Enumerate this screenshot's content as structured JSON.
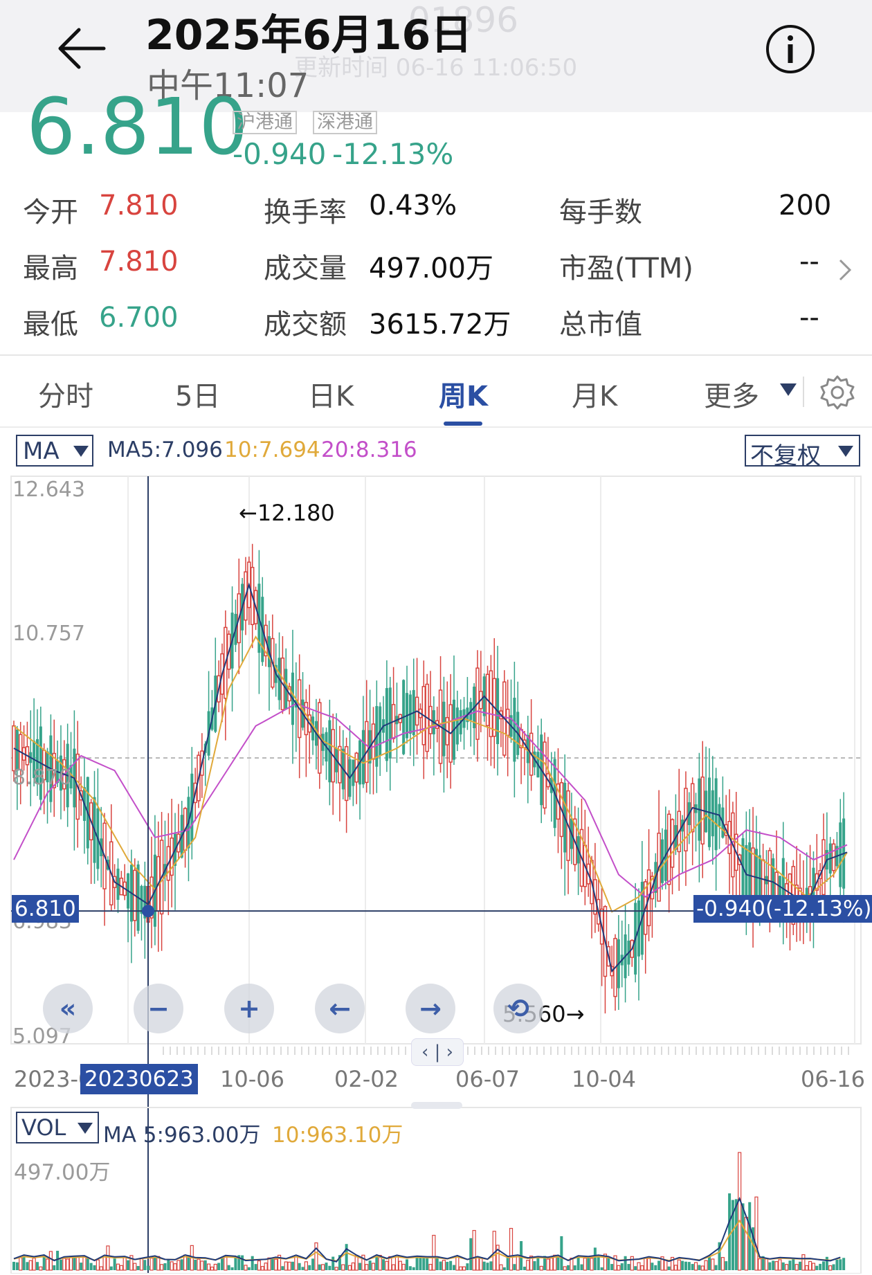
{
  "header": {
    "back_icon": "back-arrow-icon",
    "date": "2025年6月16日",
    "time": "中午11:07",
    "ghost_code": "01896",
    "ghost_update": "更新时间 06-16 11:06:50",
    "info_icon": "info-icon"
  },
  "quote": {
    "price": "6.810",
    "change": "-0.940",
    "change_pct": "-12.13%",
    "badge1": "沪港通",
    "badge2": "深港通",
    "price_color": "#36a38a"
  },
  "stats": {
    "open_label": "今开",
    "open_value": "7.810",
    "high_label": "最高",
    "high_value": "7.810",
    "low_label": "最低",
    "low_value": "6.700",
    "turnover_label": "换手率",
    "turnover_value": "0.43%",
    "volume_label": "成交量",
    "volume_value": "497.00万",
    "amount_label": "成交额",
    "amount_value": "3615.72万",
    "lot_label": "每手数",
    "lot_value": "200",
    "pe_label": "市盈(TTM)",
    "pe_value": "--",
    "mktcap_label": "总市值",
    "mktcap_value": "--"
  },
  "tabs": {
    "t1": "分时",
    "t2": "5日",
    "t3": "日K",
    "t4": "周K",
    "t5": "月K",
    "t6": "更多",
    "active": "周K",
    "settings_icon": "gear-icon"
  },
  "chart_toolbar": {
    "ma_select": "MA",
    "ma5": "MA5:7.096",
    "ma10": "10:7.694",
    "ma20": "20:8.316",
    "adjust_select": "不复权"
  },
  "chart_data": {
    "type": "candlestick",
    "period": "weekly",
    "ylim": [
      5.097,
      12.643
    ],
    "y_ticks": [
      "12.643",
      "10.757",
      "8.870",
      "6.983",
      "5.097"
    ],
    "x_ticks": [
      "2023-0",
      "10-06",
      "02-02",
      "06-07",
      "10-04",
      "06-16"
    ],
    "max_label": "←12.180",
    "min_label": "5.560→",
    "current_price_tag": "6.810",
    "change_tag": "-0.940(-12.13%)",
    "crosshair_date": "20230623",
    "reference_line": 8.87,
    "colors": {
      "up": "#d8443f",
      "down": "#36a38a",
      "ma5": "#1f3a7a",
      "ma10": "#e0a93a",
      "ma20": "#c34fc9"
    },
    "ma_anchors_ma5": [
      [
        0,
        9.0
      ],
      [
        12,
        8.7
      ],
      [
        18,
        8.6
      ],
      [
        30,
        7.2
      ],
      [
        40,
        6.9
      ],
      [
        52,
        8.0
      ],
      [
        62,
        10.0
      ],
      [
        70,
        11.2
      ],
      [
        78,
        10.0
      ],
      [
        90,
        9.2
      ],
      [
        100,
        8.6
      ],
      [
        110,
        9.3
      ],
      [
        120,
        9.5
      ],
      [
        130,
        9.2
      ],
      [
        140,
        9.7
      ],
      [
        150,
        9.2
      ],
      [
        160,
        8.5
      ],
      [
        172,
        7.2
      ],
      [
        178,
        6.0
      ],
      [
        184,
        6.3
      ],
      [
        192,
        7.4
      ],
      [
        202,
        8.2
      ],
      [
        210,
        8.1
      ],
      [
        218,
        7.3
      ],
      [
        226,
        7.2
      ],
      [
        236,
        6.9
      ],
      [
        242,
        7.5
      ],
      [
        248,
        7.6
      ]
    ],
    "ma_anchors_ma10": [
      [
        0,
        9.3
      ],
      [
        14,
        8.8
      ],
      [
        24,
        8.3
      ],
      [
        34,
        7.5
      ],
      [
        42,
        7.1
      ],
      [
        54,
        7.8
      ],
      [
        64,
        9.8
      ],
      [
        72,
        10.5
      ],
      [
        82,
        9.8
      ],
      [
        92,
        9.1
      ],
      [
        104,
        8.8
      ],
      [
        114,
        9.0
      ],
      [
        124,
        9.3
      ],
      [
        134,
        9.4
      ],
      [
        146,
        9.2
      ],
      [
        158,
        8.8
      ],
      [
        170,
        7.7
      ],
      [
        178,
        6.8
      ],
      [
        186,
        7.0
      ],
      [
        196,
        7.6
      ],
      [
        206,
        8.1
      ],
      [
        216,
        7.7
      ],
      [
        226,
        7.4
      ],
      [
        236,
        7.0
      ],
      [
        244,
        7.3
      ],
      [
        248,
        7.6
      ]
    ],
    "ma_anchors_ma20": [
      [
        0,
        7.5
      ],
      [
        10,
        8.4
      ],
      [
        20,
        8.9
      ],
      [
        30,
        8.7
      ],
      [
        42,
        7.8
      ],
      [
        52,
        7.9
      ],
      [
        62,
        8.6
      ],
      [
        72,
        9.3
      ],
      [
        84,
        9.6
      ],
      [
        96,
        9.4
      ],
      [
        106,
        9.0
      ],
      [
        116,
        9.2
      ],
      [
        126,
        9.3
      ],
      [
        138,
        9.5
      ],
      [
        148,
        9.4
      ],
      [
        160,
        8.8
      ],
      [
        170,
        8.3
      ],
      [
        180,
        7.3
      ],
      [
        188,
        7.0
      ],
      [
        198,
        7.3
      ],
      [
        208,
        7.5
      ],
      [
        218,
        7.9
      ],
      [
        228,
        7.8
      ],
      [
        238,
        7.5
      ],
      [
        248,
        7.7
      ]
    ]
  },
  "controls": {
    "fast_back": "«",
    "zoom_out": "−",
    "zoom_in": "+",
    "left": "←",
    "right": "→",
    "reset": "⟲",
    "drag_handle": "‹ | ›"
  },
  "volume": {
    "select": "VOL",
    "ma5": "MA 5:963.00万",
    "ma10": "10:963.10万",
    "max_label": "497.00万"
  }
}
